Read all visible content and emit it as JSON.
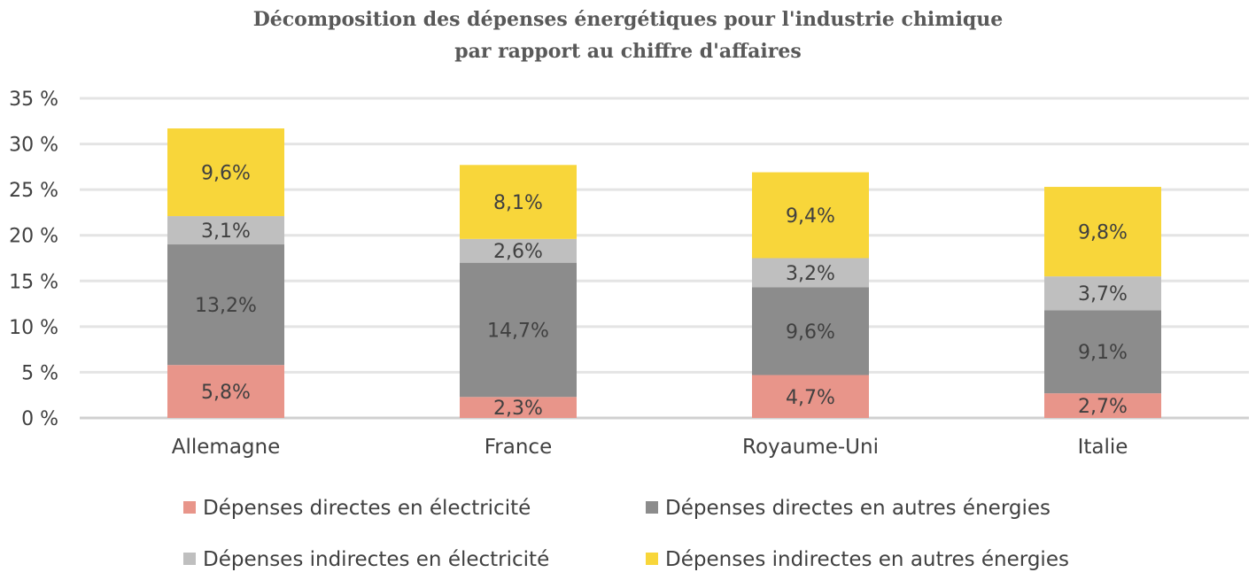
{
  "chart_data": {
    "type": "bar",
    "stacked": true,
    "title_lines": [
      "Décomposition des dépenses énergétiques pour l'industrie chimique",
      "par rapport au chiffre d'affaires"
    ],
    "categories": [
      "Allemagne",
      "France",
      "Royaume-Uni",
      "Italie"
    ],
    "series": [
      {
        "name": "Dépenses directes en électricité",
        "values": [
          5.8,
          2.3,
          4.7,
          2.7
        ],
        "labels": [
          "5,8%",
          "2,3%",
          "4,7%",
          "2,7%"
        ],
        "color": "#e8958a"
      },
      {
        "name": "Dépenses directes en autres énergies",
        "values": [
          13.2,
          14.7,
          9.6,
          9.1
        ],
        "labels": [
          "13,2%",
          "14,7%",
          "9,6%",
          "9,1%"
        ],
        "color": "#8c8c8c"
      },
      {
        "name": "Dépenses indirectes en électricité",
        "values": [
          3.1,
          2.6,
          3.2,
          3.7
        ],
        "labels": [
          "3,1%",
          "2,6%",
          "3,2%",
          "3,7%"
        ],
        "color": "#bfbfbf"
      },
      {
        "name": "Dépenses indirectes en autres énergies",
        "values": [
          9.6,
          8.1,
          9.4,
          9.8
        ],
        "labels": [
          "9,6%",
          "8,1%",
          "9,4%",
          "9,8%"
        ],
        "color": "#f8d63a"
      }
    ],
    "yticks": [
      0,
      5,
      10,
      15,
      20,
      25,
      30,
      35
    ],
    "ytick_labels": [
      "0 %",
      "5 %",
      "10 %",
      "15 %",
      "20 %",
      "25 %",
      "30 %",
      "35 %"
    ],
    "ylim": [
      0,
      35
    ],
    "grid": true,
    "legend_position": "bottom"
  }
}
